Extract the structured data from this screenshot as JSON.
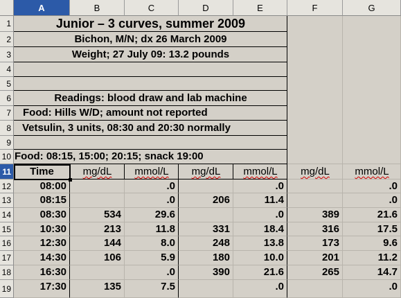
{
  "columns": [
    "A",
    "B",
    "C",
    "D",
    "E",
    "F",
    "G"
  ],
  "active_column": "A",
  "rows": [
    "1",
    "2",
    "3",
    "4",
    "5",
    "6",
    "7",
    "8",
    "9",
    "10",
    "11",
    "12",
    "13",
    "14",
    "15",
    "16",
    "17",
    "18",
    "19"
  ],
  "active_row": "11",
  "title_block": {
    "line1": "Junior – 3 curves, summer 2009",
    "line2": "Bichon, M/N; dx 26 March 2009",
    "line3": "Weight; 27 July 09: 13.2 pounds",
    "line6": "Readings: blood draw and lab machine",
    "line7": "Food: Hills W/D; amount not reported",
    "line8": "Vetsulin, 3 units, 08:30 and 20:30 normally",
    "line10": "Food: 08:15, 15:00; 20:15; snack 19:00"
  },
  "table_header": [
    "Time",
    "mg/dL",
    "mmol/L",
    "mg/dL",
    "mmol/L",
    "mg/dL",
    "mmol/L"
  ],
  "table_rows": [
    [
      "08:00",
      "",
      ".0",
      "",
      ".0",
      "",
      ".0"
    ],
    [
      "08:15",
      "",
      ".0",
      "206",
      "11.4",
      "",
      ".0"
    ],
    [
      "08:30",
      "534",
      "29.6",
      "",
      ".0",
      "389",
      "21.6"
    ],
    [
      "10:30",
      "213",
      "11.8",
      "331",
      "18.4",
      "316",
      "17.5"
    ],
    [
      "12:30",
      "144",
      "8.0",
      "248",
      "13.8",
      "173",
      "9.6"
    ],
    [
      "14:30",
      "106",
      "5.9",
      "180",
      "10.0",
      "201",
      "11.2"
    ],
    [
      "16:30",
      "",
      ".0",
      "390",
      "21.6",
      "265",
      "14.7"
    ],
    [
      "17:30",
      "135",
      "7.5",
      "",
      ".0",
      "",
      ".0"
    ]
  ]
}
